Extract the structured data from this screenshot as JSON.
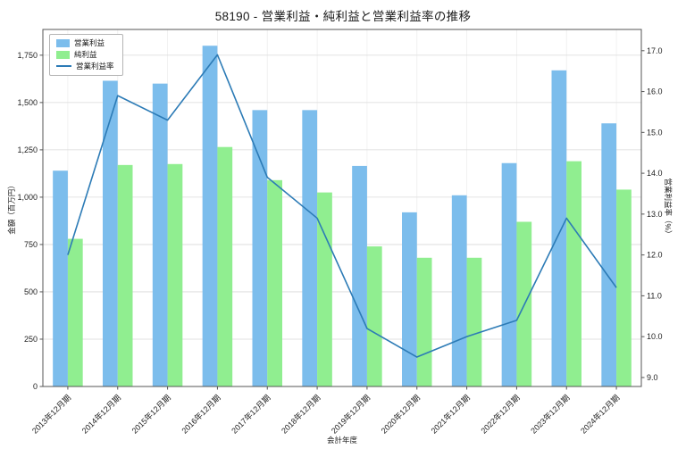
{
  "title": "58190 - 営業利益・純利益と営業利益率の推移",
  "axes": {
    "left_label": "金額（百万円）",
    "right_label": "営業利益率（%）",
    "x_label": "会計年度"
  },
  "legend": {
    "operating_profit": "営業利益",
    "net_profit": "純利益",
    "operating_margin": "営業利益率"
  },
  "colors": {
    "operating_profit": "#7cbdec",
    "net_profit": "#90ee90",
    "margin_line": "#2c7bb6",
    "grid": "#d9d9d9",
    "grid_vertical": "#efefef",
    "axis": "#555555",
    "text": "#222222"
  },
  "chart_data": {
    "type": "bar",
    "subtype": "grouped-bars-with-line",
    "title": "58190 - 営業利益・純利益と営業利益率の推移",
    "xlabel": "会計年度",
    "ylabel_left": "金額（百万円）",
    "ylabel_right": "営業利益率（%）",
    "grid": true,
    "legend_position": "upper left",
    "categories": [
      "2013年12月期",
      "2014年12月期",
      "2015年12月期",
      "2016年12月期",
      "2017年12月期",
      "2018年12月期",
      "2019年12月期",
      "2020年12月期",
      "2021年12月期",
      "2022年12月期",
      "2023年12月期",
      "2024年12月期"
    ],
    "series": [
      {
        "name": "営業利益",
        "type": "bar",
        "axis": "left",
        "values": [
          1140,
          1615,
          1600,
          1800,
          1460,
          1460,
          1165,
          920,
          1010,
          1180,
          1670,
          1390
        ]
      },
      {
        "name": "純利益",
        "type": "bar",
        "axis": "left",
        "values": [
          780,
          1170,
          1175,
          1265,
          1090,
          1025,
          740,
          680,
          680,
          870,
          1190,
          1040
        ]
      },
      {
        "name": "営業利益率",
        "type": "line",
        "axis": "right",
        "values": [
          12.0,
          15.9,
          15.3,
          16.9,
          13.9,
          12.9,
          10.2,
          9.5,
          10.0,
          10.4,
          12.9,
          11.2
        ]
      }
    ],
    "left_ylim": [
      0,
      1886
    ],
    "left_ticks": [
      0,
      250,
      500,
      750,
      1000,
      1250,
      1500,
      1750
    ],
    "right_ylim": [
      8.78,
      17.52
    ],
    "right_ticks": [
      9,
      10,
      11,
      12,
      13,
      14,
      15,
      16,
      17
    ]
  }
}
